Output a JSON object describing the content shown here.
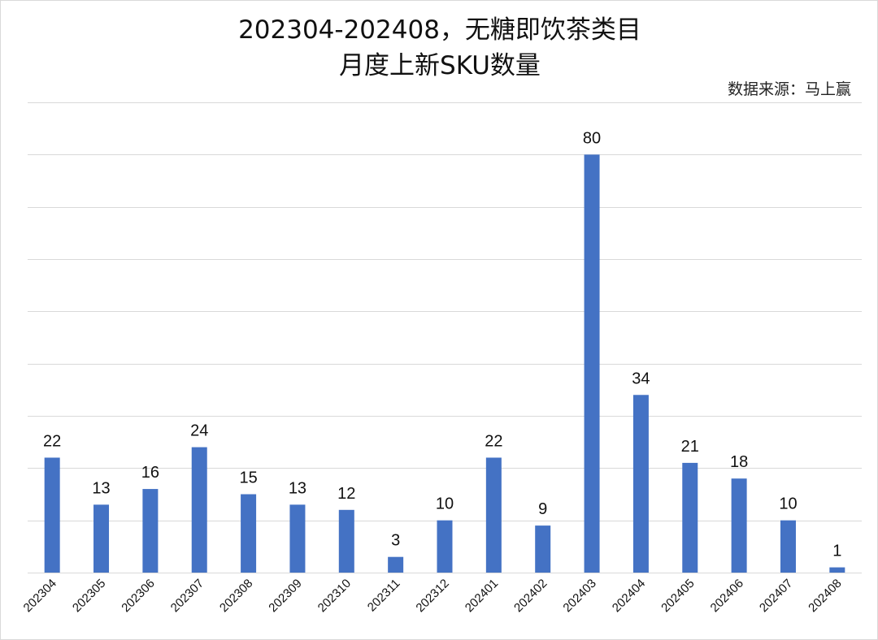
{
  "chart_data": {
    "type": "bar",
    "title_line1": "202304-202408，无糖即饮茶类目",
    "title_line2": "月度上新SKU数量",
    "source": "数据来源：马上赢",
    "categories": [
      "202304",
      "202305",
      "202306",
      "202307",
      "202308",
      "202309",
      "202310",
      "202311",
      "202312",
      "202401",
      "202402",
      "202403",
      "202404",
      "202405",
      "202406",
      "202407",
      "202408"
    ],
    "values": [
      22,
      13,
      16,
      24,
      15,
      13,
      12,
      3,
      10,
      22,
      9,
      80,
      34,
      21,
      18,
      10,
      1
    ],
    "ylim": [
      0,
      90
    ],
    "grid_step": 10,
    "grid": true,
    "bar_color": "#4472c4",
    "grid_color": "#d9d9d9"
  }
}
